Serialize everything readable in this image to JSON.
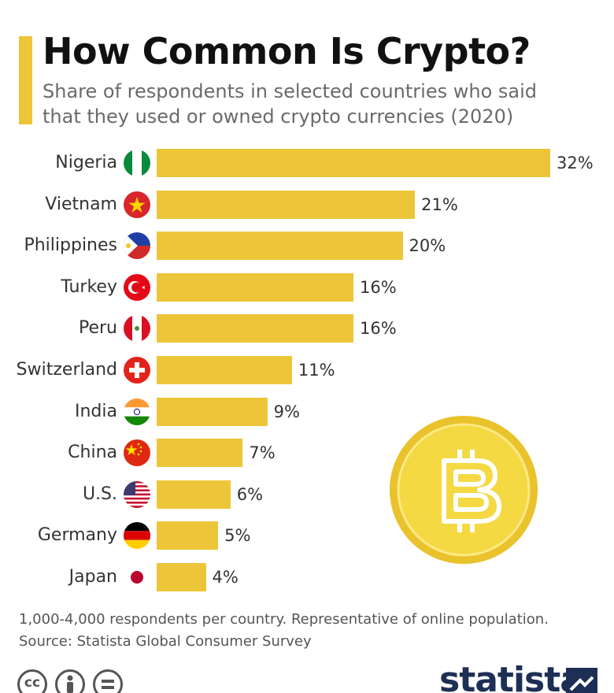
{
  "header": {
    "title": "How Common Is Crypto?",
    "subtitle": "Share of respondents in selected countries who said that they used or owned crypto currencies (2020)"
  },
  "chart_data": {
    "type": "bar",
    "orientation": "horizontal",
    "categories": [
      "Nigeria",
      "Vietnam",
      "Philippines",
      "Turkey",
      "Peru",
      "Switzerland",
      "India",
      "China",
      "U.S.",
      "Germany",
      "Japan"
    ],
    "values": [
      32,
      21,
      20,
      16,
      16,
      11,
      9,
      7,
      6,
      5,
      4
    ],
    "value_labels": [
      "32%",
      "21%",
      "20%",
      "16%",
      "16%",
      "11%",
      "9%",
      "7%",
      "6%",
      "5%",
      "4%"
    ],
    "unit": "%",
    "bar_color": "#ecc638",
    "grid": false,
    "legend": "none",
    "flags": [
      "nigeria-flag",
      "vietnam-flag",
      "philippines-flag",
      "turkey-flag",
      "peru-flag",
      "switzerland-flag",
      "india-flag",
      "china-flag",
      "us-flag",
      "germany-flag",
      "japan-flag"
    ]
  },
  "notes": {
    "methodology": "1,000-4,000 respondents per country. Representative of online population.",
    "source": "Source: Statista Global Consumer Survey"
  },
  "branding": {
    "logo": "statista",
    "license_icons": [
      "cc-icon",
      "by-icon",
      "nd-icon"
    ],
    "cc_label": "cc",
    "coin_icon": "bitcoin-icon"
  },
  "colors": {
    "accent": "#ecc638",
    "brand": "#1d2f55",
    "coin": "#f2d43a"
  }
}
